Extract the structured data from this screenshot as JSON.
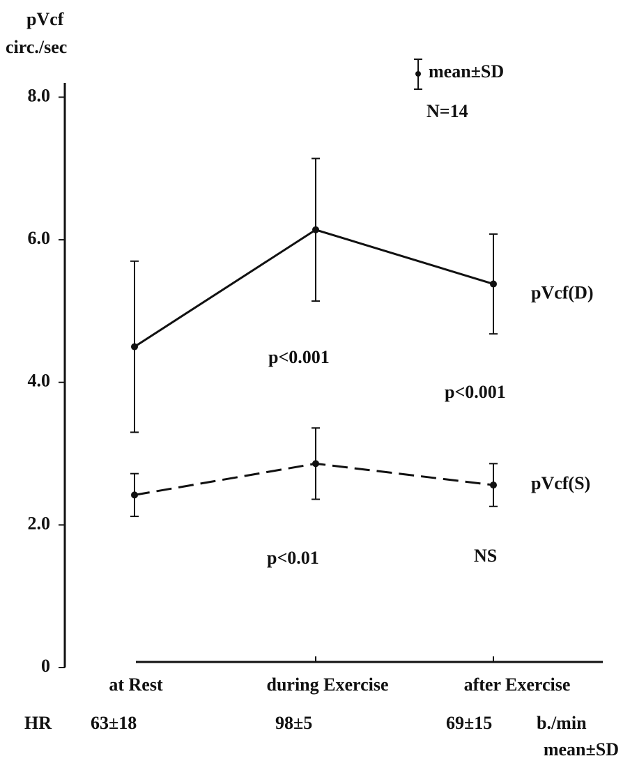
{
  "chart_data": {
    "type": "line",
    "ylabel": [
      "pVcf",
      "circ./sec"
    ],
    "categories": [
      "at Rest",
      "during Exercise",
      "after Exercise"
    ],
    "series": [
      {
        "name": "pVcf(D)",
        "color": "#111111",
        "dashed": false,
        "values": [
          4.5,
          6.14,
          5.38
        ],
        "errors": [
          1.2,
          1.0,
          0.7
        ]
      },
      {
        "name": "pVcf(S)",
        "color": "#111111",
        "dashed": true,
        "values": [
          2.42,
          2.86,
          2.56
        ],
        "errors": [
          0.3,
          0.5,
          0.3
        ]
      }
    ],
    "ylim": [
      0,
      8.2
    ],
    "yticks": [
      0,
      {
        "value": 2,
        "label": "2.0"
      },
      {
        "value": 4,
        "label": "4.0"
      },
      {
        "value": 6,
        "label": "6.0"
      },
      {
        "value": 8,
        "label": "8.0"
      }
    ],
    "legend": {
      "label": "mean±SD",
      "n": "N=14",
      "position": "upper right"
    },
    "annotations": [
      "p<0.001",
      "p<0.001",
      "p<0.01",
      "NS"
    ],
    "hr": {
      "label": "HR",
      "values": [
        "63±18",
        "98±5",
        "69±15"
      ],
      "unit": "b./min",
      "note": "mean±SD"
    }
  }
}
